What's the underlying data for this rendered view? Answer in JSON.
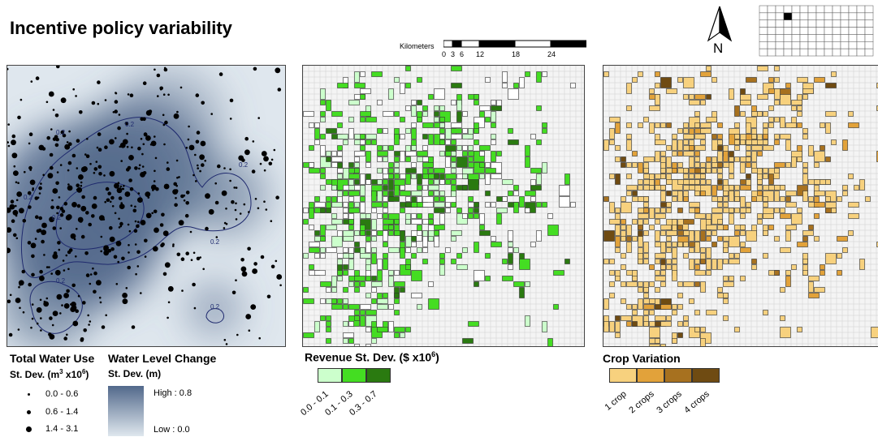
{
  "title": "Incentive policy variability",
  "scale_bar": {
    "unit": "Kilometers",
    "ticks": [
      "0",
      "3",
      "6",
      "12",
      "18",
      "24"
    ]
  },
  "north_label": "N",
  "water_map": {
    "contour_labels": [
      "0.2",
      "0.2",
      "0.2",
      "0.2",
      "0.2",
      "0.2",
      "0.2",
      "0.2"
    ],
    "colors": {
      "high": "#52698b",
      "low": "#dfe7ee"
    }
  },
  "legend_water_use": {
    "title": "Total Water Use",
    "subtitle_prefix": "St. Dev. (m",
    "subtitle_sup1": "3",
    "subtitle_mid": " x10",
    "subtitle_sup2": "6",
    "subtitle_suffix": ")",
    "classes": [
      "0.0 - 0.6",
      "0.6 - 1.4",
      "1.4 - 3.1"
    ]
  },
  "legend_water_level": {
    "title": "Water Level Change",
    "subtitle": "St. Dev. (m)",
    "high": "High : 0.8",
    "low": "Low : 0.0"
  },
  "legend_revenue": {
    "title_prefix": "Revenue St. Dev. ($ x10",
    "title_sup": "6",
    "title_suffix": ")",
    "classes": [
      {
        "label": "0.0 - 0.1",
        "color": "#ccffcc"
      },
      {
        "label": "0.1 - 0.3",
        "color": "#44dd22"
      },
      {
        "label": "0.3 - 0.7",
        "color": "#2a7a10"
      }
    ]
  },
  "legend_crop": {
    "title": "Crop Variation",
    "classes": [
      {
        "label": "1 crop",
        "color": "#f7d17e"
      },
      {
        "label": "2 crops",
        "color": "#e2a23a"
      },
      {
        "label": "3 crops",
        "color": "#a7711f"
      },
      {
        "label": "4 crops",
        "color": "#6f4b12"
      }
    ]
  }
}
